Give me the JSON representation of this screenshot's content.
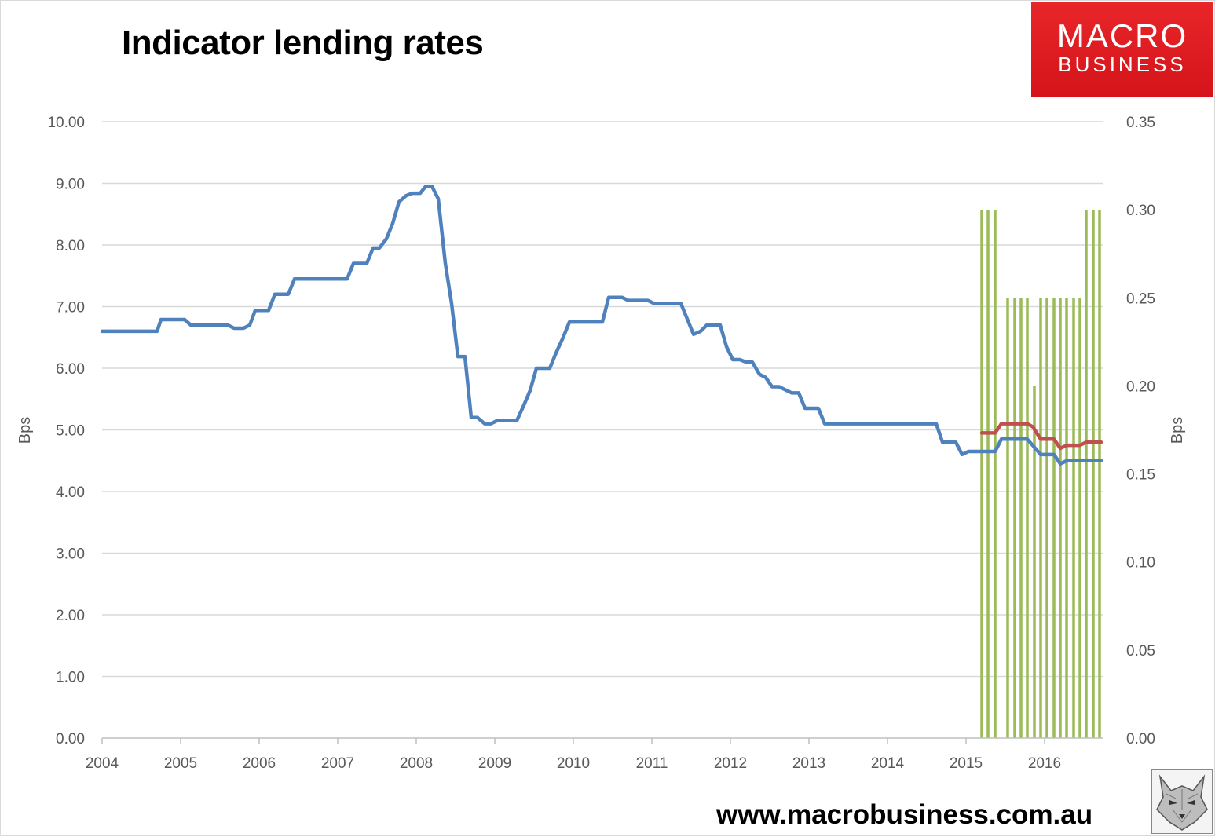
{
  "header": {
    "title": "Indicator lending rates",
    "logo_line1": "MACRO",
    "logo_line2": "BUSINESS",
    "website": "www.macrobusiness.com.au"
  },
  "chart_data": {
    "type": "line",
    "title": "Indicator lending rates",
    "ylabel": "Bps",
    "y2label": "Bps",
    "ylim": [
      0,
      10
    ],
    "y2lim": [
      0,
      0.35
    ],
    "x_range": [
      2004,
      2016.75
    ],
    "x_ticks": [
      "2004",
      "2005",
      "2006",
      "2007",
      "2008",
      "2009",
      "2010",
      "2011",
      "2012",
      "2013",
      "2014",
      "2015",
      "2016"
    ],
    "y_ticks": [
      "0.00",
      "1.00",
      "2.00",
      "3.00",
      "4.00",
      "5.00",
      "6.00",
      "7.00",
      "8.00",
      "9.00",
      "10.00"
    ],
    "y2_ticks": [
      "0.00",
      "0.05",
      "0.10",
      "0.15",
      "0.20",
      "0.25",
      "0.30",
      "0.35"
    ],
    "grid": true,
    "legend": "none",
    "colors": {
      "blue": "#4f81bd",
      "red": "#c0504d",
      "green": "#9bbb59",
      "grid": "#d9d9d9",
      "text": "#595959"
    },
    "series": [
      {
        "axis": "left",
        "kind": "line",
        "color": "#4f81bd",
        "points": [
          [
            2004.0,
            6.6
          ],
          [
            2004.7,
            6.6
          ],
          [
            2004.75,
            6.79
          ],
          [
            2005.05,
            6.79
          ],
          [
            2005.13,
            6.7
          ],
          [
            2005.6,
            6.7
          ],
          [
            2005.68,
            6.65
          ],
          [
            2005.8,
            6.65
          ],
          [
            2005.88,
            6.7
          ],
          [
            2005.95,
            6.94
          ],
          [
            2006.12,
            6.94
          ],
          [
            2006.2,
            7.2
          ],
          [
            2006.37,
            7.2
          ],
          [
            2006.45,
            7.45
          ],
          [
            2007.12,
            7.45
          ],
          [
            2007.2,
            7.7
          ],
          [
            2007.37,
            7.7
          ],
          [
            2007.45,
            7.95
          ],
          [
            2007.53,
            7.95
          ],
          [
            2007.62,
            8.1
          ],
          [
            2007.7,
            8.35
          ],
          [
            2007.78,
            8.7
          ],
          [
            2007.87,
            8.8
          ],
          [
            2007.95,
            8.84
          ],
          [
            2008.05,
            8.84
          ],
          [
            2008.12,
            8.95
          ],
          [
            2008.2,
            8.95
          ],
          [
            2008.28,
            8.75
          ],
          [
            2008.37,
            7.7
          ],
          [
            2008.45,
            7.05
          ],
          [
            2008.53,
            6.19
          ],
          [
            2008.62,
            6.19
          ],
          [
            2008.7,
            5.2
          ],
          [
            2008.78,
            5.2
          ],
          [
            2008.87,
            5.1
          ],
          [
            2008.95,
            5.1
          ],
          [
            2009.03,
            5.15
          ],
          [
            2009.28,
            5.15
          ],
          [
            2009.37,
            5.4
          ],
          [
            2009.45,
            5.64
          ],
          [
            2009.53,
            6.0
          ],
          [
            2009.7,
            6.0
          ],
          [
            2009.78,
            6.25
          ],
          [
            2009.87,
            6.5
          ],
          [
            2009.95,
            6.75
          ],
          [
            2010.37,
            6.75
          ],
          [
            2010.45,
            7.15
          ],
          [
            2010.62,
            7.15
          ],
          [
            2010.7,
            7.1
          ],
          [
            2010.95,
            7.1
          ],
          [
            2011.03,
            7.05
          ],
          [
            2011.37,
            7.05
          ],
          [
            2011.45,
            6.8
          ],
          [
            2011.53,
            6.55
          ],
          [
            2011.62,
            6.6
          ],
          [
            2011.7,
            6.7
          ],
          [
            2011.87,
            6.7
          ],
          [
            2011.95,
            6.35
          ],
          [
            2012.03,
            6.14
          ],
          [
            2012.12,
            6.14
          ],
          [
            2012.2,
            6.1
          ],
          [
            2012.28,
            6.1
          ],
          [
            2012.37,
            5.9
          ],
          [
            2012.45,
            5.85
          ],
          [
            2012.53,
            5.7
          ],
          [
            2012.62,
            5.7
          ],
          [
            2012.7,
            5.65
          ],
          [
            2012.78,
            5.6
          ],
          [
            2012.87,
            5.6
          ],
          [
            2012.95,
            5.35
          ],
          [
            2013.12,
            5.35
          ],
          [
            2013.2,
            5.1
          ],
          [
            2014.62,
            5.1
          ],
          [
            2014.7,
            4.8
          ],
          [
            2014.87,
            4.8
          ],
          [
            2014.95,
            4.6
          ],
          [
            2015.03,
            4.65
          ],
          [
            2015.37,
            4.65
          ],
          [
            2015.45,
            4.85
          ],
          [
            2015.78,
            4.85
          ],
          [
            2015.95,
            4.6
          ],
          [
            2016.12,
            4.6
          ],
          [
            2016.2,
            4.45
          ],
          [
            2016.28,
            4.5
          ],
          [
            2016.72,
            4.5
          ]
        ]
      },
      {
        "axis": "left",
        "kind": "line",
        "color": "#c0504d",
        "points": [
          [
            2015.2,
            4.95
          ],
          [
            2015.37,
            4.95
          ],
          [
            2015.45,
            5.1
          ],
          [
            2015.78,
            5.1
          ],
          [
            2015.85,
            5.05
          ],
          [
            2015.95,
            4.85
          ],
          [
            2016.12,
            4.85
          ],
          [
            2016.2,
            4.7
          ],
          [
            2016.28,
            4.75
          ],
          [
            2016.45,
            4.75
          ],
          [
            2016.53,
            4.8
          ],
          [
            2016.72,
            4.8
          ]
        ]
      },
      {
        "axis": "right",
        "kind": "bar",
        "color": "#9bbb59",
        "points": [
          [
            2015.2,
            0.3
          ],
          [
            2015.28,
            0.3
          ],
          [
            2015.37,
            0.3
          ],
          [
            2015.53,
            0.25
          ],
          [
            2015.62,
            0.25
          ],
          [
            2015.7,
            0.25
          ],
          [
            2015.78,
            0.25
          ],
          [
            2015.87,
            0.2
          ],
          [
            2015.95,
            0.25
          ],
          [
            2016.03,
            0.25
          ],
          [
            2016.12,
            0.25
          ],
          [
            2016.2,
            0.25
          ],
          [
            2016.28,
            0.25
          ],
          [
            2016.37,
            0.25
          ],
          [
            2016.45,
            0.25
          ],
          [
            2016.53,
            0.3
          ],
          [
            2016.62,
            0.3
          ],
          [
            2016.7,
            0.3
          ]
        ]
      }
    ]
  }
}
